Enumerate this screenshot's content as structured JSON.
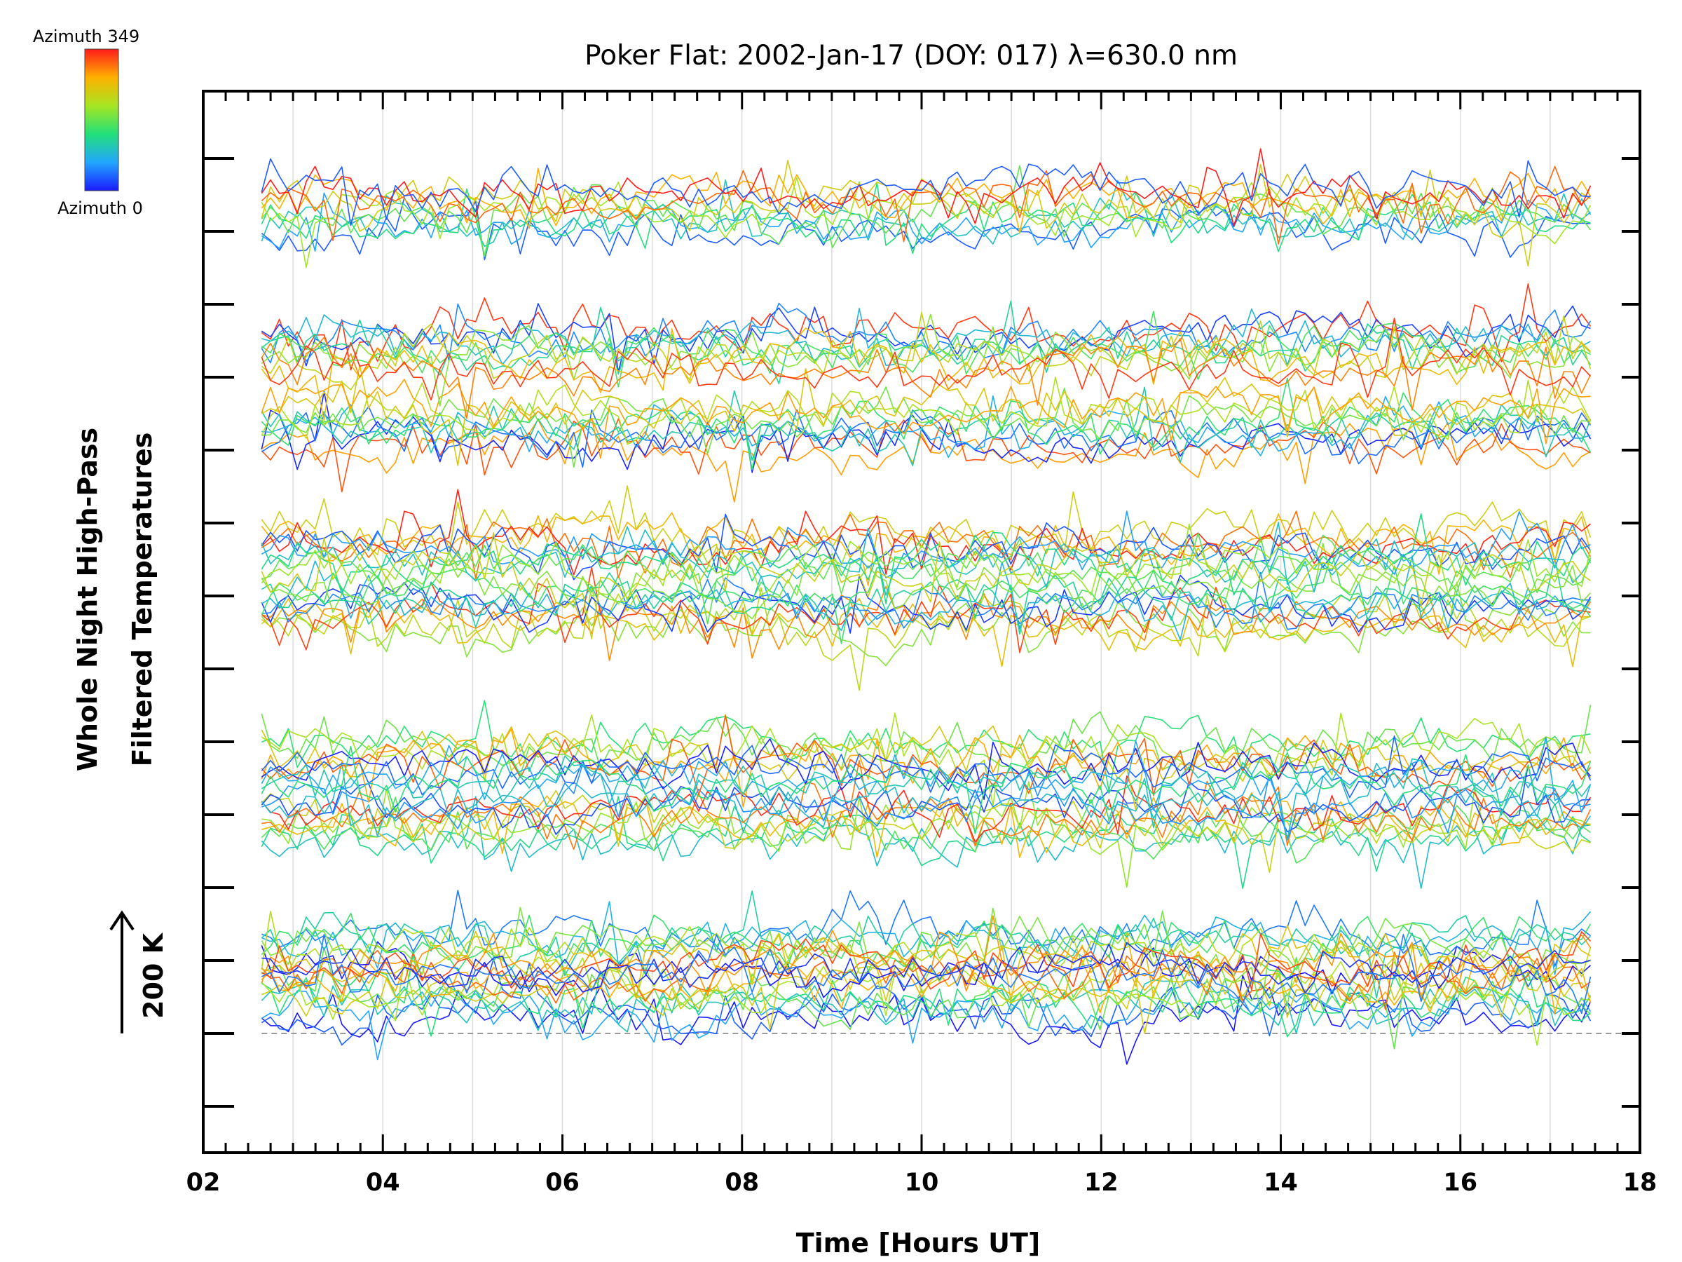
{
  "chart_data": {
    "type": "line",
    "title": "Poker Flat: 2002-Jan-17 (DOY: 017) λ=630.0 nm",
    "xlabel": "Time [Hours UT]",
    "ylabel": [
      "Whole Night High-Pass",
      "Filtered Temperatures"
    ],
    "x_ticks": [
      "02",
      "04",
      "06",
      "08",
      "10",
      "12",
      "14",
      "16",
      "18"
    ],
    "xlim": [
      2,
      18
    ],
    "x_range_data": [
      2.65,
      17.45
    ],
    "grid": "vertical lines every hour",
    "baseline_dashed": true,
    "scale_bar": {
      "label": "200 K",
      "kelvin": 200
    },
    "colorbar": {
      "top_label": "Azimuth  349",
      "bottom_label": "Azimuth  0",
      "colormap": [
        "#1a1aff",
        "#22a6ff",
        "#22e07a",
        "#a6e622",
        "#ffb000",
        "#ff1a1a"
      ]
    },
    "series_groups": [
      {
        "stack": "lowest",
        "traces": 20
      },
      {
        "stack": "second",
        "traces": 20
      },
      {
        "stack": "third",
        "traces": 20
      },
      {
        "stack": "fourth",
        "traces": 20
      },
      {
        "stack": "top",
        "traces": 20
      }
    ],
    "series_note_values": "Each trace is a noisy high-pass filtered temperature series offset vertically; azimuth colour runs from blue (0) to red (349)."
  }
}
